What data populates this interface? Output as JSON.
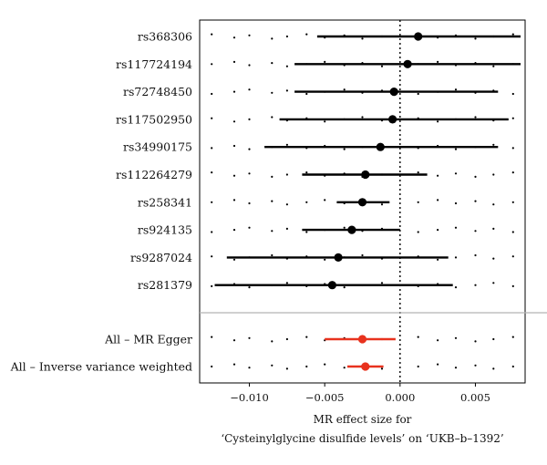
{
  "chart_data": {
    "type": "forest",
    "snps": [
      {
        "label": "rs368306",
        "estimate": 0.0012,
        "lower": -0.0055,
        "upper": 0.008
      },
      {
        "label": "rs117724194",
        "estimate": 0.0005,
        "lower": -0.007,
        "upper": 0.008
      },
      {
        "label": "rs72748450",
        "estimate": -0.0004,
        "lower": -0.007,
        "upper": 0.0065
      },
      {
        "label": "rs117502950",
        "estimate": -0.0005,
        "lower": -0.008,
        "upper": 0.0072
      },
      {
        "label": "rs34990175",
        "estimate": -0.0013,
        "lower": -0.009,
        "upper": 0.0065
      },
      {
        "label": "rs112264279",
        "estimate": -0.0023,
        "lower": -0.0065,
        "upper": 0.0018
      },
      {
        "label": "rs258341",
        "estimate": -0.0025,
        "lower": -0.0042,
        "upper": -0.0007
      },
      {
        "label": "rs924135",
        "estimate": -0.0032,
        "lower": -0.0065,
        "upper": 0.0
      },
      {
        "label": "rs9287024",
        "estimate": -0.0041,
        "lower": -0.0115,
        "upper": 0.0032
      },
      {
        "label": "rs281379",
        "estimate": -0.0045,
        "lower": -0.0123,
        "upper": 0.0035
      }
    ],
    "summary": [
      {
        "label": "All – MR Egger",
        "estimate": -0.0025,
        "lower": -0.005,
        "upper": -0.0003
      },
      {
        "label": "All – Inverse variance weighted",
        "estimate": -0.0023,
        "lower": -0.0035,
        "upper": -0.0011
      }
    ],
    "xlim": [
      -0.0133,
      0.0083
    ],
    "x_ticks": [
      -0.01,
      -0.005,
      0.0,
      0.005
    ],
    "x_tick_labels": [
      "−0.010",
      "−0.005",
      "0.000",
      "0.005"
    ],
    "reference_line": 0,
    "xlabel_line1": "MR effect size for",
    "xlabel_line2": "‘Cysteinylglycine disulfide levels’ on ‘UKB–b–1392’",
    "colors": {
      "snp": "#000000",
      "summary": "#e8321e",
      "separator": "#b5b5b5",
      "grid_dots": "#000000"
    }
  }
}
